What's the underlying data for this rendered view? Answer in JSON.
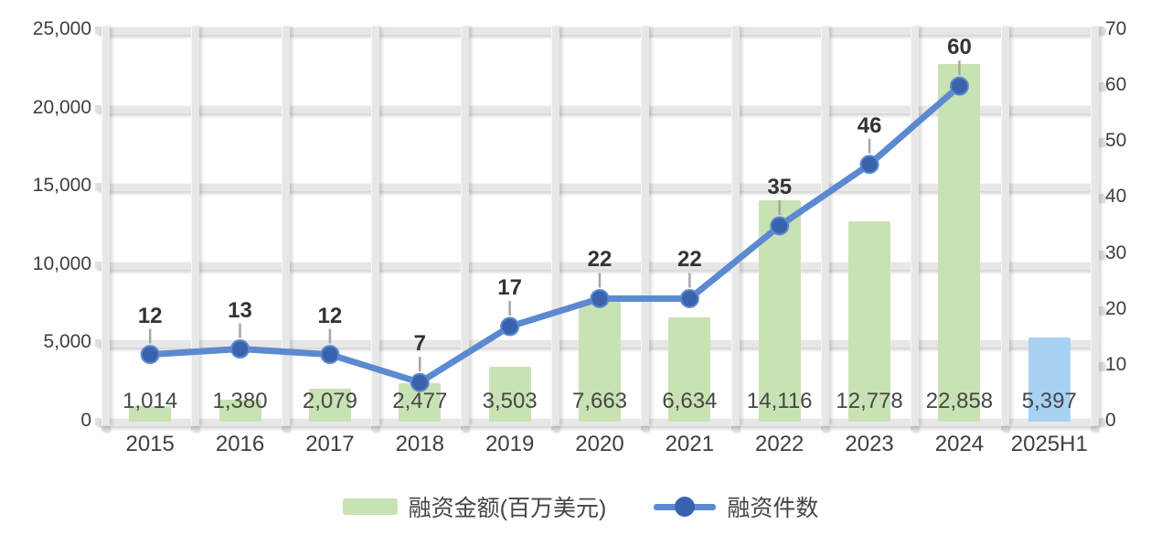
{
  "chart_data": {
    "type": "combo",
    "categories": [
      "2015",
      "2016",
      "2017",
      "2018",
      "2019",
      "2020",
      "2021",
      "2022",
      "2023",
      "2024",
      "2025H1"
    ],
    "series": [
      {
        "name": "融资金额(百万美元)",
        "type": "bar",
        "axis": "left",
        "values": [
          1014,
          1380,
          2079,
          2477,
          3503,
          7663,
          6634,
          14116,
          12778,
          22858,
          5397
        ],
        "value_labels": [
          "1,014",
          "1,380",
          "2,079",
          "2,477",
          "3,503",
          "7,663",
          "6,634",
          "14,116",
          "12,778",
          "22,858",
          "5,397"
        ],
        "bar_fills": [
          "#c9e2b4",
          "#c9e2b4",
          "#c9e2b4",
          "#c9e2b4",
          "#c9e2b4",
          "#c9e2b4",
          "#c9e2b4",
          "#c9e2b4",
          "#c9e2b4",
          "#c9e2b4",
          "#a8d2f4"
        ]
      },
      {
        "name": "融资件数",
        "type": "line",
        "axis": "right",
        "values": [
          12,
          13,
          12,
          7,
          17,
          22,
          22,
          35,
          46,
          60,
          null
        ],
        "value_labels": [
          "12",
          "13",
          "12",
          "7",
          "17",
          "22",
          "22",
          "35",
          "46",
          "60",
          ""
        ]
      }
    ],
    "left_axis": {
      "min": 0,
      "max": 25000,
      "step": 5000,
      "ticks_top_to_bottom": [
        "25,000",
        "20,000",
        "15,000",
        "10,000",
        "5,000",
        "0"
      ]
    },
    "right_axis": {
      "min": 0,
      "max": 70,
      "step": 10,
      "ticks_top_to_bottom": [
        "70",
        "60",
        "50",
        "40",
        "30",
        "20",
        "10",
        "0"
      ]
    },
    "grid": "on",
    "legend_position": "bottom",
    "title": ""
  },
  "colors": {
    "bar": "#c9e2b4",
    "bar_highlight": "#a8d2f4",
    "line": "#5b8ad1",
    "marker": "#3a63ae",
    "stem": "#a6a6a6",
    "grid": "#e7e7e7",
    "text": "#404040"
  }
}
